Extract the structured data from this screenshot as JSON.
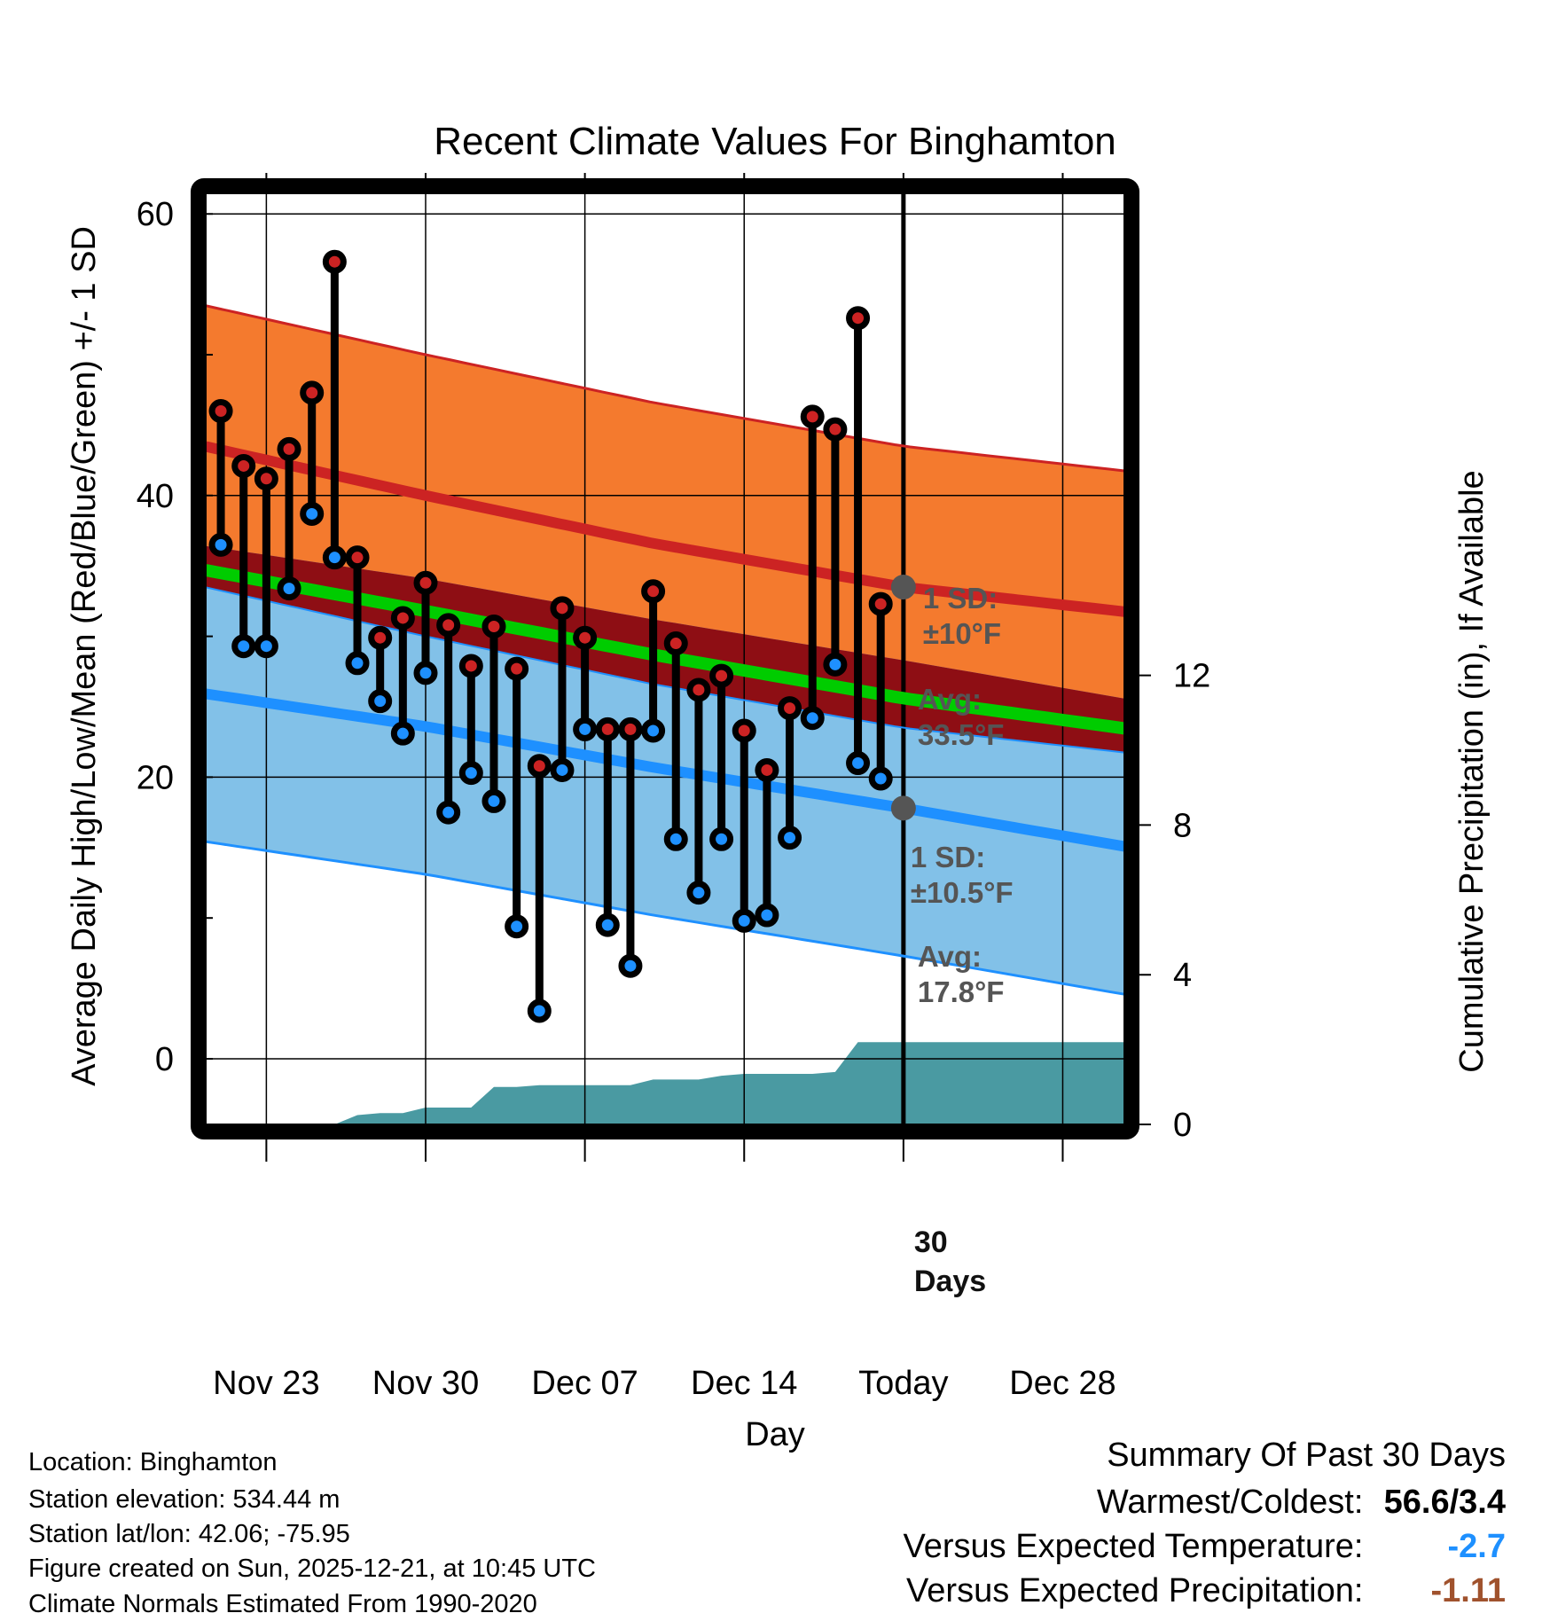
{
  "chart_data": {
    "type": "line",
    "title": "Recent Climate Values For Binghamton",
    "xlabel": "Day",
    "ylabel": "Average Daily High/Low/Mean (Red/Blue/Green) +/- 1 SD",
    "y2label": "Cumulative Precipitation (in), If Available",
    "ylim": [
      -4,
      62
    ],
    "y2lim": [
      0,
      22
    ],
    "yticks": [
      0,
      20,
      40,
      60
    ],
    "yticks_minor": [
      10,
      30,
      50
    ],
    "y2ticks": [
      0,
      4,
      8,
      12
    ],
    "x_start_day": 0,
    "x_end_day": 41,
    "xticks": [
      {
        "day": 3,
        "label": "Nov 23"
      },
      {
        "day": 10,
        "label": "Nov 30"
      },
      {
        "day": 17,
        "label": "Dec 07"
      },
      {
        "day": 24,
        "label": "Dec 14"
      },
      {
        "day": 31,
        "label": "Today"
      },
      {
        "day": 38,
        "label": "Dec 28"
      }
    ],
    "today_day": 31,
    "grid": true,
    "observed": {
      "days": [
        1,
        2,
        3,
        4,
        5,
        6,
        7,
        8,
        9,
        10,
        11,
        12,
        13,
        14,
        15,
        16,
        17,
        18,
        19,
        20,
        21,
        22,
        23,
        24,
        25,
        26,
        27,
        28,
        29,
        30
      ],
      "highs": [
        46.0,
        42.1,
        41.2,
        43.3,
        47.3,
        56.6,
        35.6,
        29.9,
        31.3,
        33.8,
        30.8,
        27.9,
        30.7,
        27.7,
        20.8,
        32.0,
        29.9,
        23.4,
        23.4,
        33.2,
        29.5,
        26.2,
        27.2,
        23.3,
        20.5,
        24.9,
        45.6,
        44.7,
        52.6,
        32.3
      ],
      "lows": [
        36.5,
        29.3,
        29.3,
        33.4,
        38.7,
        35.6,
        28.1,
        25.4,
        23.1,
        27.4,
        17.5,
        20.3,
        18.3,
        9.4,
        3.4,
        20.5,
        23.4,
        9.5,
        6.6,
        23.3,
        15.6,
        11.8,
        15.6,
        9.8,
        10.2,
        15.7,
        24.2,
        28.0,
        21.0,
        19.9
      ]
    },
    "normals": {
      "days": [
        0,
        10,
        20,
        31,
        41
      ],
      "high_avg": [
        43.6,
        40.0,
        36.6,
        33.5,
        31.7
      ],
      "high_sd": 10,
      "low_avg": [
        26.0,
        23.6,
        20.7,
        17.8,
        15.0
      ],
      "low_sd": 10.5,
      "mean_avg": [
        34.8,
        31.8,
        28.7,
        25.6,
        23.4
      ]
    },
    "precip": {
      "days": [
        0,
        6,
        7,
        8,
        9,
        10,
        11,
        12,
        13,
        14,
        15,
        16,
        17,
        18,
        19,
        20,
        21,
        22,
        23,
        24,
        25,
        26,
        27,
        28,
        29,
        30,
        31,
        41
      ],
      "cumulative_in": [
        0,
        0,
        0.25,
        0.3,
        0.3,
        0.45,
        0.45,
        0.45,
        1.0,
        1.0,
        1.05,
        1.05,
        1.05,
        1.05,
        1.05,
        1.2,
        1.2,
        1.2,
        1.3,
        1.35,
        1.35,
        1.35,
        1.35,
        1.4,
        2.2,
        2.2,
        2.2,
        2.2
      ]
    },
    "annotations": {
      "high_sd": [
        "1 SD:",
        "±10°F"
      ],
      "high_avg": [
        "Avg:",
        "33.5°F"
      ],
      "low_sd": [
        "1 SD:",
        "±10.5°F"
      ],
      "low_avg": [
        "Avg:",
        "17.8°F"
      ],
      "days": [
        "30",
        "Days"
      ]
    },
    "colors": {
      "high_band": "#f47a2e",
      "high_line": "#cc2323",
      "low_band": "#82c1e8",
      "low_line": "#1e90ff",
      "overlap_band": "#8e0e14",
      "mean_line": "#00cc00",
      "precip": "#4a9aa2",
      "high_dot": "#cc2323",
      "low_dot": "#1e90ff",
      "annotation": "#555555"
    }
  },
  "footer": {
    "location": "Location: Binghamton",
    "elevation": "Station elevation: 534.44 m",
    "latlon": "Station lat/lon: 42.06; -75.95",
    "created": "Figure created on Sun, 2025-12-21, at 10:45 UTC",
    "normals": "Climate Normals Estimated From 1990-2020"
  },
  "summary": {
    "heading": "Summary Of Past 30 Days",
    "warmest_label": "Warmest/Coldest:",
    "warmest_value": "56.6/3.4",
    "temp_label": "Versus Expected Temperature:",
    "temp_value": "-2.7",
    "temp_color": "#1e90ff",
    "precip_label": "Versus Expected Precipitation:",
    "precip_value": "-1.11",
    "precip_color": "#a0522d"
  }
}
